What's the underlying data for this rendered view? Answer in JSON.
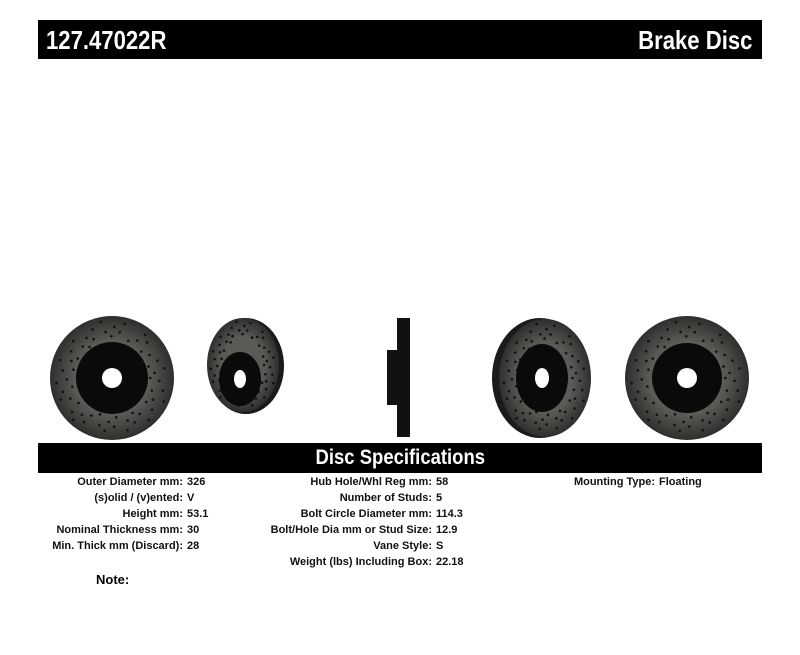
{
  "header": {
    "part_number": "127.47022R",
    "product_type": "Brake Disc"
  },
  "spec_title": "Disc Specifications",
  "specs_col1": [
    {
      "label": "Outer Diameter mm:",
      "value": "326"
    },
    {
      "label": "(s)olid / (v)ented:",
      "value": "V"
    },
    {
      "label": "Height mm:",
      "value": "53.1"
    },
    {
      "label": "Nominal Thickness mm:",
      "value": "30"
    },
    {
      "label": "Min. Thick mm (Discard):",
      "value": "28"
    }
  ],
  "specs_col2": [
    {
      "label": "Hub Hole/Whl Reg mm:",
      "value": "58"
    },
    {
      "label": "Number of Studs:",
      "value": "5"
    },
    {
      "label": "Bolt Circle Diameter mm:",
      "value": "114.3"
    },
    {
      "label": "Bolt/Hole Dia mm or Stud Size:",
      "value": "12.9"
    },
    {
      "label": "Vane Style:",
      "value": "S"
    },
    {
      "label": "Weight (lbs) Including Box:",
      "value": "22.18"
    }
  ],
  "specs_col3": [
    {
      "label": "Mounting Type:",
      "value": "Floating"
    }
  ],
  "note_label": "Note:",
  "colors": {
    "bar": "#000000",
    "rotor": "#4a4a48",
    "hat": "#0a0a0a"
  }
}
